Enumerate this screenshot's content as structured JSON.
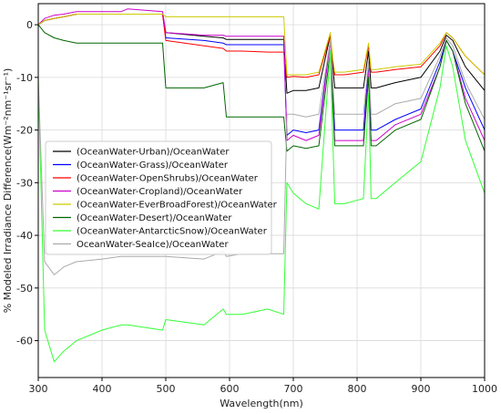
{
  "chart_data": {
    "type": "line",
    "title": "",
    "xlabel": "Wavelength(nm)",
    "ylabel": "% Modeled Irradiance Difference(Wm⁻²nm⁻¹sr⁻¹)",
    "xlim": [
      300,
      1000
    ],
    "ylim": [
      -67,
      4
    ],
    "grid": true,
    "legend_placement": "center-left",
    "x_ticks": [
      "300",
      "400",
      "500",
      "600",
      "700",
      "800",
      "900",
      "1000"
    ],
    "y_ticks": [
      "0",
      "-10",
      "-20",
      "-30",
      "-40",
      "-50",
      "-60"
    ],
    "x": [
      300,
      310,
      325,
      340,
      360,
      400,
      430,
      440,
      495,
      500,
      560,
      590,
      595,
      620,
      660,
      685,
      690,
      700,
      720,
      740,
      758,
      762,
      765,
      780,
      810,
      818,
      822,
      830,
      860,
      900,
      930,
      940,
      950,
      970,
      1000
    ],
    "series": [
      {
        "name": "(OceanWater-Urban)/OceanWater",
        "color": "#000000",
        "values": [
          0,
          0.8,
          1.2,
          1.5,
          2,
          2,
          2,
          2,
          2,
          -1.5,
          -2.2,
          -2.5,
          -2.8,
          -2.8,
          -2.8,
          -2.8,
          -13,
          -12.5,
          -12.5,
          -12,
          -2,
          -8,
          -12,
          -12,
          -12,
          -5,
          -12,
          -12,
          -11,
          -10,
          -5,
          -2,
          -3,
          -8,
          -12.5
        ]
      },
      {
        "name": "(OceanWater-Grass)/OceanWater",
        "color": "#0000ff",
        "values": [
          0,
          0.8,
          1.2,
          1.5,
          2,
          2,
          2,
          2,
          2,
          -2.5,
          -3,
          -3.5,
          -3.8,
          -3.8,
          -3.8,
          -3.8,
          -21,
          -20,
          -20.5,
          -20,
          -3,
          -13,
          -20,
          -20,
          -20,
          -8,
          -20,
          -20,
          -18,
          -16,
          -7,
          -3,
          -5,
          -12,
          -20
        ]
      },
      {
        "name": "(OceanWater-OpenShrubs)/OceanWater",
        "color": "#ff0000",
        "values": [
          0,
          0.8,
          1.2,
          1.5,
          2,
          2,
          2,
          2,
          2,
          -3,
          -4,
          -4.5,
          -5,
          -5,
          -5.2,
          -5.2,
          -10,
          -9.8,
          -10,
          -9.5,
          -2,
          -7,
          -9.5,
          -9.5,
          -9,
          -4,
          -9,
          -9,
          -8.5,
          -8,
          -4,
          -1.5,
          -2.5,
          -6,
          -9.5
        ]
      },
      {
        "name": "(OceanWater-Cropland)/OceanWater",
        "color": "#cc00cc",
        "values": [
          0,
          1.2,
          1.8,
          2,
          2.5,
          2.5,
          2.5,
          3,
          2.5,
          -1.5,
          -2,
          -2,
          -2.2,
          -2.2,
          -2.2,
          -2.2,
          -22,
          -21,
          -22,
          -21,
          -3,
          -14,
          -22,
          -22,
          -22,
          -9,
          -22,
          -22,
          -19,
          -17,
          -8,
          -3,
          -5,
          -14,
          -22
        ]
      },
      {
        "name": "(OceanWater-EverBroadForest)/OceanWater",
        "color": "#cccc00",
        "values": [
          0,
          0.8,
          1.2,
          1.5,
          2,
          2,
          2,
          2,
          2,
          1.5,
          1.5,
          1.5,
          1.5,
          1.5,
          1.5,
          1.5,
          -9.5,
          -9.5,
          -9.5,
          -9,
          -1.5,
          -6.5,
          -9,
          -9,
          -8.5,
          -3.5,
          -8.5,
          -8.5,
          -8,
          -7.5,
          -3.5,
          -1.5,
          -2.5,
          -6,
          -9.5
        ]
      },
      {
        "name": "(OceanWater-Desert)/OceanWater",
        "color": "#006600",
        "values": [
          0,
          -1.5,
          -2.5,
          -3,
          -3.5,
          -3.5,
          -3.5,
          -3.5,
          -3.5,
          -12,
          -12,
          -11,
          -17.5,
          -17.5,
          -17.5,
          -17.5,
          -24,
          -23,
          -23.5,
          -23,
          -5,
          -15,
          -23,
          -23,
          -23,
          -10,
          -23,
          -23,
          -20,
          -18,
          -8,
          -3,
          -5,
          -15,
          -24
        ]
      },
      {
        "name": "(OceanWater-AntarcticSnow)/OceanWater",
        "color": "#33ff33",
        "values": [
          -10,
          -58,
          -64,
          -62,
          -60,
          -58,
          -57,
          -57,
          -58,
          -56,
          -57,
          -54,
          -55,
          -55,
          -54,
          -55,
          -30,
          -32,
          -34,
          -35,
          -5,
          -22,
          -34,
          -34,
          -33,
          -13,
          -33,
          -33,
          -30,
          -26,
          -12,
          -4,
          -8,
          -22,
          -32
        ]
      },
      {
        "name": "OceanWater-SeaIce)/OceanWater",
        "color": "#aaaaaa",
        "values": [
          -10,
          -45,
          -47.5,
          -46,
          -45,
          -44.5,
          -44,
          -44,
          -44,
          -44,
          -44.5,
          -43,
          -44,
          -43.5,
          -43.5,
          -43.5,
          -17,
          -17,
          -17.5,
          -17,
          -3,
          -11,
          -17,
          -17,
          -17,
          -7,
          -17,
          -17,
          -15,
          -14,
          -6,
          -2.5,
          -4,
          -11,
          -18
        ]
      }
    ]
  }
}
